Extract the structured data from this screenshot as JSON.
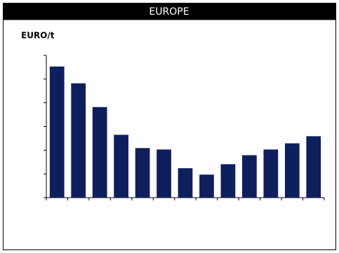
{
  "chart_data": {
    "type": "bar",
    "title": "EUROPE",
    "y_label": "EURO/t",
    "categories": [
      null,
      null,
      null,
      null,
      null,
      null,
      null,
      null,
      null,
      null,
      null,
      null,
      null
    ],
    "values": [
      5.53,
      4.82,
      3.82,
      2.65,
      2.09,
      2.03,
      1.24,
      0.97,
      1.41,
      1.79,
      2.03,
      2.29,
      2.59
    ],
    "color": "#0d1f5c",
    "ylim": [
      0,
      6
    ],
    "yticks": [
      0,
      1,
      2,
      3,
      4,
      5,
      6
    ],
    "grid": false
  }
}
